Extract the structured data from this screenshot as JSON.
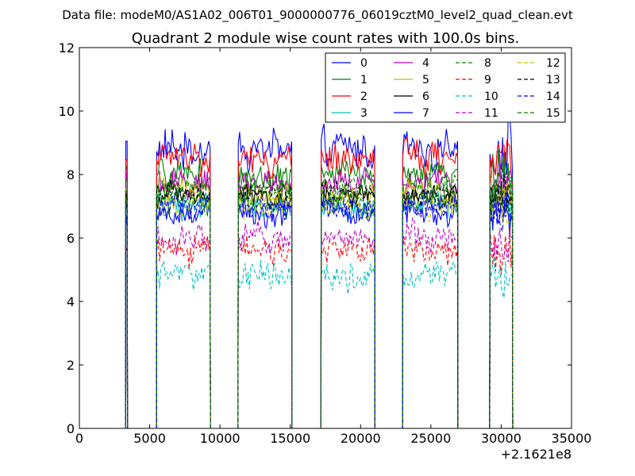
{
  "chart_data": {
    "type": "line",
    "suptitle": "Data file: modeM0/AS1A02_006T01_9000000776_06019cztM0_level2_quad_clean.evt",
    "title": "Quadrant 2 module wise count rates with 100.0s bins.",
    "xlabel": "",
    "ylabel": "",
    "xlim": [
      0,
      35000
    ],
    "ylim": [
      0,
      12
    ],
    "x_offset_label": "+2.1621e8",
    "xticks": [
      0,
      5000,
      10000,
      15000,
      20000,
      25000,
      30000,
      35000
    ],
    "yticks": [
      0,
      2,
      4,
      6,
      8,
      10,
      12
    ],
    "legend_position": "top-right",
    "segments": [
      {
        "start": 3300,
        "end": 3400
      },
      {
        "start": 5500,
        "end": 9300
      },
      {
        "start": 11300,
        "end": 15100
      },
      {
        "start": 17200,
        "end": 21000
      },
      {
        "start": 23000,
        "end": 26900
      },
      {
        "start": 29200,
        "end": 30800
      }
    ],
    "series": [
      {
        "name": "0",
        "color": "#0000ff",
        "dash": "solid",
        "level": 8.8,
        "noise": 0.55
      },
      {
        "name": "1",
        "color": "#008000",
        "dash": "solid",
        "level": 8.0,
        "noise": 0.45
      },
      {
        "name": "2",
        "color": "#ff0000",
        "dash": "solid",
        "level": 8.5,
        "noise": 0.45
      },
      {
        "name": "3",
        "color": "#00bfbf",
        "dash": "solid",
        "level": 7.1,
        "noise": 0.4
      },
      {
        "name": "4",
        "color": "#bf00bf",
        "dash": "solid",
        "level": 7.7,
        "noise": 0.4
      },
      {
        "name": "5",
        "color": "#bfbf00",
        "dash": "solid",
        "level": 7.4,
        "noise": 0.4
      },
      {
        "name": "6",
        "color": "#000000",
        "dash": "solid",
        "level": 7.3,
        "noise": 0.3
      },
      {
        "name": "7",
        "color": "#0000ff",
        "dash": "solid",
        "level": 6.8,
        "noise": 0.4
      },
      {
        "name": "8",
        "color": "#008000",
        "dash": "dashed",
        "level": 7.2,
        "noise": 0.4
      },
      {
        "name": "9",
        "color": "#ff0000",
        "dash": "dashed",
        "level": 5.6,
        "noise": 0.4
      },
      {
        "name": "10",
        "color": "#00bfbf",
        "dash": "dashed",
        "level": 4.8,
        "noise": 0.4
      },
      {
        "name": "11",
        "color": "#bf00bf",
        "dash": "dashed",
        "level": 6.0,
        "noise": 0.4
      },
      {
        "name": "12",
        "color": "#bfbf00",
        "dash": "dashed",
        "level": 7.0,
        "noise": 0.35
      },
      {
        "name": "13",
        "color": "#000000",
        "dash": "dashed",
        "level": 7.4,
        "noise": 0.3
      },
      {
        "name": "14",
        "color": "#0000ff",
        "dash": "dashed",
        "level": 7.0,
        "noise": 0.35
      },
      {
        "name": "15",
        "color": "#008000",
        "dash": "dashed",
        "level": 7.6,
        "noise": 0.35
      }
    ]
  }
}
